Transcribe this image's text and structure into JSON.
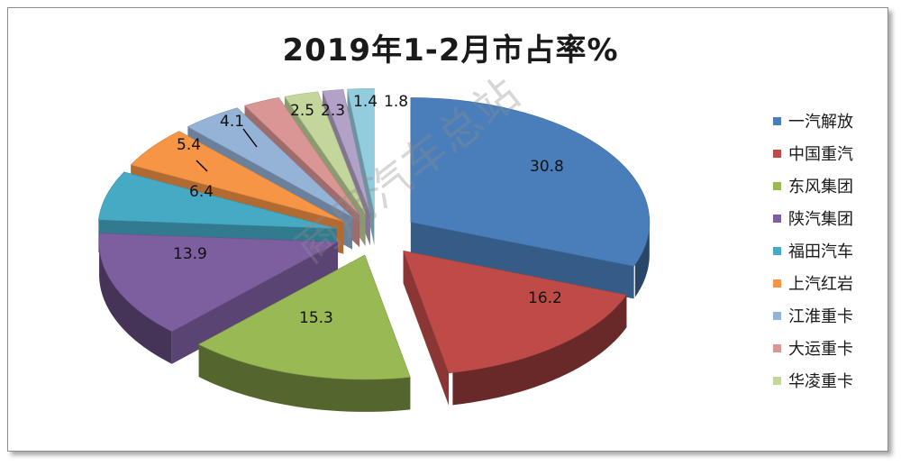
{
  "chart_data": {
    "type": "pie",
    "title": "2019年1-2月市占率%",
    "watermark": "商用汽车总站",
    "slices": [
      {
        "name": "一汽解放",
        "value": 30.8,
        "label": "30.8",
        "color": "#4A7EBB"
      },
      {
        "name": "中国重汽",
        "value": 16.2,
        "label": "16.2",
        "color": "#BE4B48"
      },
      {
        "name": "东风集团",
        "value": 15.3,
        "label": "15.3",
        "color": "#98B954"
      },
      {
        "name": "陕汽集团",
        "value": 13.9,
        "label": "13.9",
        "color": "#7D5FA0"
      },
      {
        "name": "福田汽车",
        "value": 6.4,
        "label": "6.4",
        "color": "#46AAC5"
      },
      {
        "name": "上汽红岩",
        "value": 5.4,
        "label": "5.4",
        "color": "#F69545"
      },
      {
        "name": "江淮重卡",
        "value": 4.1,
        "label": "4.1",
        "color": "#95B3D7"
      },
      {
        "name": "大运重卡",
        "value": 2.5,
        "label": "2.5",
        "color": "#DA9694"
      },
      {
        "name": "华凌重卡",
        "value": 2.3,
        "label": "2.3",
        "color": "#C3D69B"
      },
      {
        "name": "",
        "value": 1.4,
        "label": "1.4",
        "color": "#B3A2C7"
      },
      {
        "name": "",
        "value": 1.8,
        "label": "1.8",
        "color": "#93CDDD"
      }
    ],
    "legend_position": "right"
  }
}
